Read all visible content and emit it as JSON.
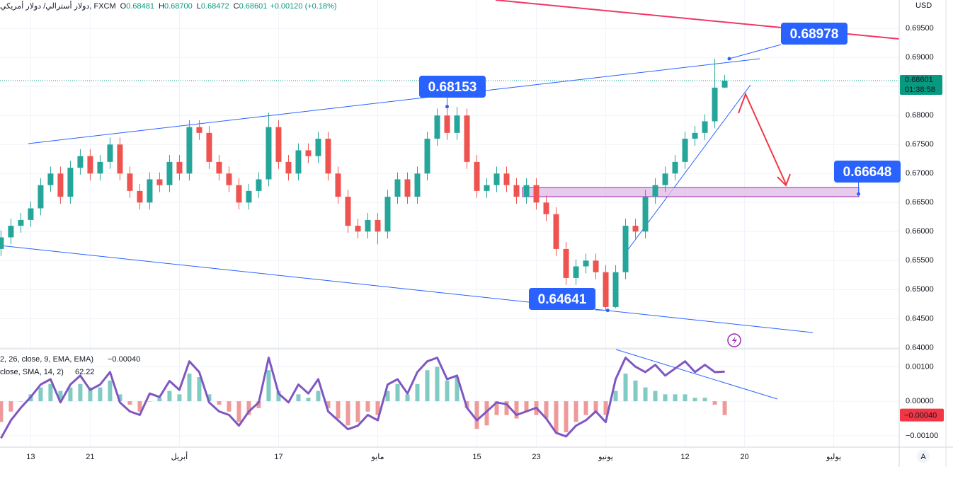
{
  "header": {
    "symbol": "دولار أسترالي/ دولار أمريكي, FXCM",
    "ohlc": [
      {
        "k": "O",
        "v": "0.68481"
      },
      {
        "k": "H",
        "v": "0.68700"
      },
      {
        "k": "L",
        "v": "0.68472"
      },
      {
        "k": "C",
        "v": "0.68601"
      }
    ],
    "change": "+0.00120 (+0.18%)"
  },
  "chart_data": [
    {
      "type": "candlestick",
      "currency": "USD",
      "x": [
        -3,
        -2,
        -1,
        0,
        1,
        2,
        3,
        4,
        5,
        6,
        7,
        8,
        9,
        10,
        11,
        12,
        13,
        14,
        15,
        16,
        17,
        18,
        19,
        20,
        21,
        22,
        23,
        24,
        25,
        26,
        27,
        28,
        29,
        30,
        31,
        32,
        33,
        34,
        35,
        36,
        37,
        38,
        39,
        40,
        41,
        42,
        43,
        44,
        45,
        46,
        47,
        48,
        49,
        50,
        51,
        52,
        53,
        54,
        55,
        56,
        57,
        58,
        59,
        60,
        61,
        62,
        63,
        64,
        65,
        66,
        67,
        68,
        69,
        70
      ],
      "open": [
        0.657,
        0.659,
        0.661,
        0.662,
        0.664,
        0.668,
        0.67,
        0.666,
        0.671,
        0.673,
        0.67,
        0.672,
        0.675,
        0.67,
        0.667,
        0.665,
        0.669,
        0.668,
        0.672,
        0.67,
        0.678,
        0.677,
        0.672,
        0.67,
        0.668,
        0.665,
        0.667,
        0.669,
        0.678,
        0.672,
        0.67,
        0.674,
        0.673,
        0.676,
        0.67,
        0.666,
        0.661,
        0.66,
        0.662,
        0.66,
        0.666,
        0.669,
        0.666,
        0.67,
        0.676,
        0.68,
        0.677,
        0.68,
        0.672,
        0.667,
        0.668,
        0.67,
        0.668,
        0.666,
        0.668,
        0.665,
        0.663,
        0.657,
        0.652,
        0.654,
        0.655,
        0.653,
        0.647,
        0.653,
        0.661,
        0.66,
        0.666,
        0.668,
        0.67,
        0.672,
        0.676,
        0.677,
        0.679,
        0.68481
      ],
      "high": [
        0.6602,
        0.6622,
        0.6632,
        0.6652,
        0.6692,
        0.6712,
        0.6712,
        0.6722,
        0.6742,
        0.6742,
        0.6732,
        0.6762,
        0.6762,
        0.6712,
        0.6682,
        0.6702,
        0.6702,
        0.6732,
        0.6732,
        0.6792,
        0.6792,
        0.6782,
        0.6732,
        0.6712,
        0.6692,
        0.6682,
        0.6702,
        0.6805,
        0.6792,
        0.6732,
        0.6752,
        0.6752,
        0.6772,
        0.6772,
        0.6712,
        0.6672,
        0.6622,
        0.6632,
        0.6632,
        0.6672,
        0.6702,
        0.6702,
        0.6712,
        0.6772,
        0.6812,
        0.6812,
        0.6815,
        0.6812,
        0.6732,
        0.6692,
        0.6712,
        0.6712,
        0.6692,
        0.6692,
        0.6692,
        0.6662,
        0.6642,
        0.6582,
        0.6552,
        0.6562,
        0.6562,
        0.6542,
        0.6542,
        0.6622,
        0.6622,
        0.6672,
        0.6692,
        0.6712,
        0.6732,
        0.6772,
        0.6782,
        0.6802,
        0.68978,
        0.687
      ],
      "low": [
        0.6558,
        0.6578,
        0.6598,
        0.6608,
        0.6628,
        0.6668,
        0.6648,
        0.6648,
        0.6698,
        0.6688,
        0.6688,
        0.6708,
        0.6688,
        0.6658,
        0.6638,
        0.6638,
        0.6668,
        0.6668,
        0.6688,
        0.6688,
        0.6758,
        0.6708,
        0.6688,
        0.6668,
        0.6638,
        0.6638,
        0.6658,
        0.6678,
        0.6708,
        0.6688,
        0.6688,
        0.6718,
        0.6718,
        0.6688,
        0.6648,
        0.6598,
        0.6588,
        0.6588,
        0.6578,
        0.6588,
        0.6648,
        0.6648,
        0.6648,
        0.6688,
        0.6748,
        0.6758,
        0.6758,
        0.6708,
        0.6658,
        0.6658,
        0.6668,
        0.6668,
        0.6648,
        0.6648,
        0.6638,
        0.6618,
        0.6558,
        0.6508,
        0.6508,
        0.6528,
        0.6518,
        0.64641,
        0.6468,
        0.6518,
        0.6588,
        0.6588,
        0.6648,
        0.6668,
        0.6688,
        0.6708,
        0.6748,
        0.6758,
        0.6778,
        0.68472
      ],
      "close": [
        0.659,
        0.661,
        0.662,
        0.664,
        0.668,
        0.67,
        0.666,
        0.671,
        0.673,
        0.67,
        0.672,
        0.675,
        0.67,
        0.667,
        0.665,
        0.669,
        0.668,
        0.672,
        0.67,
        0.678,
        0.677,
        0.672,
        0.67,
        0.668,
        0.665,
        0.667,
        0.669,
        0.678,
        0.672,
        0.67,
        0.674,
        0.673,
        0.676,
        0.67,
        0.666,
        0.661,
        0.66,
        0.662,
        0.66,
        0.666,
        0.669,
        0.666,
        0.67,
        0.676,
        0.68,
        0.677,
        0.68,
        0.672,
        0.667,
        0.668,
        0.67,
        0.668,
        0.666,
        0.668,
        0.665,
        0.663,
        0.657,
        0.652,
        0.654,
        0.655,
        0.653,
        0.647,
        0.653,
        0.661,
        0.66,
        0.666,
        0.668,
        0.67,
        0.672,
        0.676,
        0.677,
        0.679,
        0.6848,
        0.68601
      ],
      "up_color": "#26a69a",
      "down_color": "#ef5350",
      "xlim": [
        -3.1,
        87.6
      ],
      "xticks": [
        {
          "value": 0,
          "label": "13"
        },
        {
          "value": 6,
          "label": "21"
        },
        {
          "value": 15,
          "label": "أبريل"
        },
        {
          "value": 25,
          "label": "17"
        },
        {
          "value": 35,
          "label": "مايو"
        },
        {
          "value": 45,
          "label": "15"
        },
        {
          "value": 51,
          "label": "23"
        },
        {
          "value": 58,
          "label": "يونيو"
        },
        {
          "value": 66,
          "label": "12"
        },
        {
          "value": 72,
          "label": "20"
        },
        {
          "value": 81,
          "label": "يوليو"
        }
      ],
      "ylim": [
        0.6398,
        0.6999
      ],
      "yticks": [
        {
          "value": 0.695,
          "label": "0.69500"
        },
        {
          "value": 0.69,
          "label": "0.69000"
        },
        {
          "value": 0.685,
          "label": "0.68500"
        },
        {
          "value": 0.68,
          "label": "0.68000"
        },
        {
          "value": 0.675,
          "label": "0.67500"
        },
        {
          "value": 0.67,
          "label": "0.67000"
        },
        {
          "value": 0.665,
          "label": "0.66500"
        },
        {
          "value": 0.66,
          "label": "0.66000"
        },
        {
          "value": 0.655,
          "label": "0.65500"
        },
        {
          "value": 0.65,
          "label": "0.65000"
        },
        {
          "value": 0.645,
          "label": "0.64500"
        },
        {
          "value": 0.64,
          "label": "0.64000"
        }
      ],
      "grid": true,
      "last_price": {
        "value": 0.68601,
        "countdown": "01:38:58",
        "color": "#089981"
      },
      "annotations": [
        {
          "x": 70.46,
          "value": 0.68978
        },
        {
          "x": 42.0,
          "value": 0.68153
        },
        {
          "x": 83.5,
          "value": 0.66648
        },
        {
          "x": 58.2,
          "value": 0.64641
        }
      ]
    },
    {
      "type": "macd_rsi",
      "macd_title": "2, 26, close, 9, EMA, EMA)",
      "rsi_title": "close, SMA, 14, 2)",
      "histogram": {
        "values": [
          -0.0006,
          -0.0003,
          0,
          0.0002,
          0.0004,
          0.0005,
          0.0003,
          0.0004,
          0.0005,
          0.0004,
          0.0004,
          0.0006,
          0.0002,
          -0.0001,
          -0.0003,
          0,
          0.0001,
          0.0003,
          0.0002,
          0.0008,
          0.0007,
          0.0002,
          -0.0001,
          -0.0003,
          -0.0006,
          -0.0004,
          -0.0002,
          0.0009,
          0.0003,
          0,
          0.0002,
          0.0001,
          0.0003,
          -0.0002,
          -0.0005,
          -0.0007,
          -0.0006,
          -0.0003,
          -0.0004,
          0.0003,
          0.0005,
          0.0002,
          0.0005,
          0.0009,
          0.001,
          0.0006,
          0.0007,
          -0.0002,
          -0.0008,
          -0.0007,
          -0.0004,
          -0.0004,
          -0.0005,
          -0.0003,
          -0.0004,
          -0.0005,
          -0.0009,
          -0.0009,
          -0.0006,
          -0.0004,
          -0.0003,
          -0.0004,
          0.0003,
          0.0008,
          0.0006,
          0.0004,
          0.0003,
          0.0002,
          0.0002,
          0.0002,
          0.0001,
          0.0001,
          -0.0001,
          -0.0004
        ],
        "value_label": "−0.00040",
        "pos_color": "#80cbc4",
        "neg_color": "#ef9a9a",
        "label_color": "#f23645"
      },
      "rsi": {
        "values": [
          25,
          35,
          42,
          48,
          55,
          58,
          45,
          55,
          60,
          52,
          55,
          62,
          45,
          40,
          38,
          50,
          48,
          57,
          52,
          68,
          62,
          45,
          40,
          38,
          32,
          40,
          45,
          70,
          50,
          45,
          55,
          50,
          58,
          40,
          35,
          30,
          32,
          38,
          35,
          55,
          58,
          50,
          62,
          68,
          70,
          58,
          60,
          42,
          35,
          40,
          45,
          44,
          38,
          40,
          42,
          36,
          28,
          26,
          32,
          35,
          40,
          34,
          58,
          70,
          65,
          62,
          66,
          60,
          64,
          68,
          62,
          66,
          62,
          62.22
        ],
        "color": "#7e57c2",
        "ylim": [
          20,
          75
        ]
      },
      "ylim": [
        -0.00133,
        0.00152
      ],
      "yticks": [
        {
          "value": 0.001,
          "label": "0.00100"
        },
        {
          "value": 0,
          "label": "0.00000"
        },
        {
          "value": -0.001,
          "label": "−0.00100"
        }
      ]
    }
  ]
}
